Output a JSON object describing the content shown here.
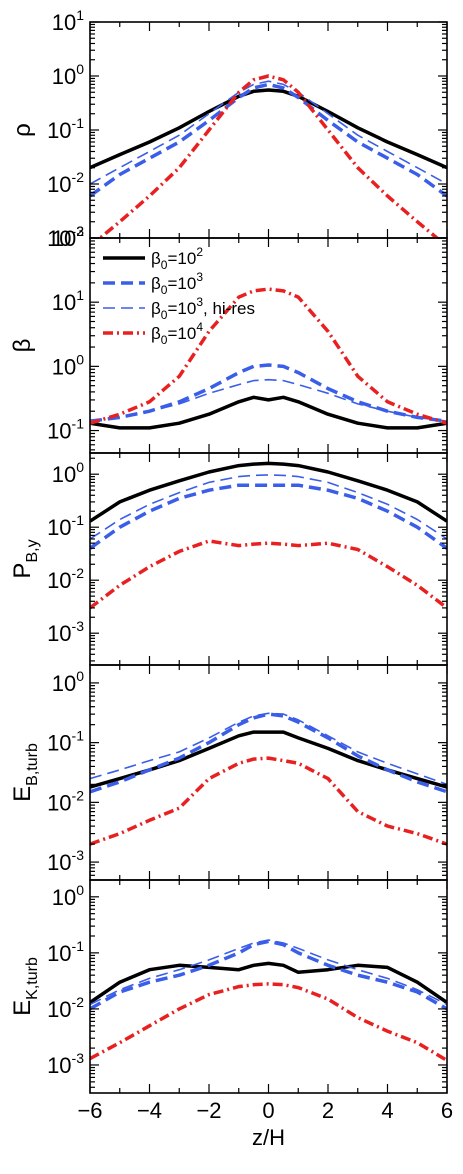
{
  "chart_data": {
    "type": "line",
    "xlabel": "z/H",
    "xlim": [
      -6,
      6
    ],
    "xticks": [
      -6,
      -4,
      -2,
      0,
      2,
      4,
      6
    ],
    "x": [
      -6,
      -5,
      -4,
      -3,
      -2,
      -1,
      -0.5,
      0,
      0.5,
      1,
      2,
      3,
      4,
      5,
      6
    ],
    "legend": {
      "placement": "top-left of second panel",
      "entries": [
        {
          "series_id": "b2",
          "base": "β",
          "sub": "0",
          "eq": "=10",
          "exp": "2",
          "suffix": ""
        },
        {
          "series_id": "b3",
          "base": "β",
          "sub": "0",
          "eq": "=10",
          "exp": "3",
          "suffix": ""
        },
        {
          "series_id": "b3hr",
          "base": "β",
          "sub": "0",
          "eq": "=10",
          "exp": "3",
          "suffix": ", hi-res"
        },
        {
          "series_id": "b4",
          "base": "β",
          "sub": "0",
          "eq": "=10",
          "exp": "4",
          "suffix": ""
        }
      ]
    },
    "styles": {
      "b2": {
        "color": "#000000",
        "dash": "none",
        "width": 3.5
      },
      "b3": {
        "color": "#3b5ee8",
        "dash": "12,6",
        "width": 3.5
      },
      "b3hr": {
        "color": "#3b5ee8",
        "dash": "12,6",
        "width": 1.6
      },
      "b4": {
        "color": "#e82020",
        "dash": "10,4,2,4",
        "width": 3.5
      }
    },
    "panels": [
      {
        "ylabel": "ρ",
        "ylabel_sub": "",
        "yscale": "log",
        "ylim_exp": [
          -3,
          1
        ],
        "yticks": [
          {
            "base": "10",
            "exp": "1"
          },
          {
            "base": "10",
            "exp": "0"
          },
          {
            "base": "10",
            "exp": "-1"
          },
          {
            "base": "10",
            "exp": "-2"
          },
          {
            "base": "10",
            "exp": "-3"
          }
        ],
        "series": [
          {
            "id": "b2",
            "y": [
              0.02,
              0.035,
              0.06,
              0.11,
              0.22,
              0.42,
              0.52,
              0.55,
              0.52,
              0.42,
              0.22,
              0.11,
              0.06,
              0.035,
              0.02
            ]
          },
          {
            "id": "b3",
            "y": [
              0.006,
              0.015,
              0.03,
              0.06,
              0.15,
              0.4,
              0.6,
              0.7,
              0.6,
              0.4,
              0.15,
              0.06,
              0.03,
              0.015,
              0.006
            ]
          },
          {
            "id": "b3hr",
            "y": [
              0.01,
              0.02,
              0.04,
              0.08,
              0.2,
              0.5,
              0.7,
              0.8,
              0.7,
              0.5,
              0.2,
              0.08,
              0.04,
              0.02,
              0.01
            ]
          },
          {
            "id": "b4",
            "y": [
              0.0007,
              0.002,
              0.006,
              0.02,
              0.1,
              0.5,
              0.85,
              1.0,
              0.85,
              0.5,
              0.1,
              0.02,
              0.006,
              0.002,
              0.0007
            ]
          }
        ]
      },
      {
        "ylabel": "β",
        "ylabel_sub": "",
        "yscale": "log",
        "ylim_exp": [
          -1.35,
          2
        ],
        "yticks": [
          {
            "base": "10",
            "exp": "2"
          },
          {
            "base": "10",
            "exp": "1"
          },
          {
            "base": "10",
            "exp": "0"
          },
          {
            "base": "10",
            "exp": "-1"
          }
        ],
        "series": [
          {
            "id": "b2",
            "y": [
              0.13,
              0.11,
              0.11,
              0.13,
              0.18,
              0.28,
              0.33,
              0.3,
              0.33,
              0.28,
              0.18,
              0.13,
              0.11,
              0.11,
              0.13
            ]
          },
          {
            "id": "b3",
            "y": [
              0.14,
              0.16,
              0.2,
              0.28,
              0.45,
              0.8,
              1.0,
              1.05,
              1.0,
              0.8,
              0.45,
              0.28,
              0.2,
              0.16,
              0.14
            ]
          },
          {
            "id": "b3hr",
            "y": [
              0.14,
              0.16,
              0.2,
              0.26,
              0.38,
              0.52,
              0.6,
              0.62,
              0.6,
              0.52,
              0.38,
              0.26,
              0.2,
              0.16,
              0.14
            ]
          },
          {
            "id": "b4",
            "y": [
              0.13,
              0.18,
              0.28,
              0.7,
              3.5,
              12.0,
              15.0,
              16.0,
              15.0,
              12.0,
              3.5,
              0.7,
              0.28,
              0.18,
              0.13
            ]
          }
        ]
      },
      {
        "ylabel": "P",
        "ylabel_sub": "B,y",
        "yscale": "log",
        "ylim_exp": [
          -3.6,
          0.4
        ],
        "yticks": [
          {
            "base": "10",
            "exp": "0"
          },
          {
            "base": "10",
            "exp": "-1"
          },
          {
            "base": "10",
            "exp": "-2"
          },
          {
            "base": "10",
            "exp": "-3"
          }
        ],
        "series": [
          {
            "id": "b2",
            "y": [
              0.13,
              0.3,
              0.5,
              0.75,
              1.1,
              1.45,
              1.55,
              1.6,
              1.55,
              1.45,
              1.1,
              0.75,
              0.5,
              0.3,
              0.13
            ]
          },
          {
            "id": "b3",
            "y": [
              0.04,
              0.1,
              0.2,
              0.35,
              0.5,
              0.62,
              0.62,
              0.62,
              0.62,
              0.62,
              0.5,
              0.35,
              0.2,
              0.1,
              0.04
            ]
          },
          {
            "id": "b3hr",
            "y": [
              0.06,
              0.14,
              0.27,
              0.45,
              0.7,
              0.9,
              0.95,
              0.97,
              0.95,
              0.9,
              0.7,
              0.45,
              0.27,
              0.14,
              0.06
            ]
          },
          {
            "id": "b4",
            "y": [
              0.003,
              0.008,
              0.018,
              0.035,
              0.055,
              0.045,
              0.048,
              0.05,
              0.048,
              0.045,
              0.05,
              0.038,
              0.018,
              0.008,
              0.003
            ]
          }
        ]
      },
      {
        "ylabel": "E",
        "ylabel_sub": "B,turb",
        "yscale": "log",
        "ylim_exp": [
          -3.3,
          0.3
        ],
        "yticks": [
          {
            "base": "10",
            "exp": "0"
          },
          {
            "base": "10",
            "exp": "-1"
          },
          {
            "base": "10",
            "exp": "-2"
          },
          {
            "base": "10",
            "exp": "-3"
          }
        ],
        "series": [
          {
            "id": "b2",
            "y": [
              0.018,
              0.025,
              0.035,
              0.05,
              0.08,
              0.13,
              0.15,
              0.15,
              0.15,
              0.12,
              0.08,
              0.05,
              0.035,
              0.025,
              0.018
            ]
          },
          {
            "id": "b3",
            "y": [
              0.015,
              0.022,
              0.035,
              0.055,
              0.1,
              0.2,
              0.26,
              0.3,
              0.28,
              0.22,
              0.12,
              0.06,
              0.035,
              0.022,
              0.015
            ]
          },
          {
            "id": "b3hr",
            "y": [
              0.025,
              0.035,
              0.05,
              0.07,
              0.12,
              0.22,
              0.28,
              0.31,
              0.3,
              0.24,
              0.13,
              0.07,
              0.045,
              0.03,
              0.02
            ]
          },
          {
            "id": "b4",
            "y": [
              0.002,
              0.003,
              0.005,
              0.008,
              0.025,
              0.045,
              0.053,
              0.055,
              0.05,
              0.045,
              0.025,
              0.007,
              0.004,
              0.003,
              0.002
            ]
          }
        ]
      },
      {
        "ylabel": "E",
        "ylabel_sub": "K,turb",
        "yscale": "log",
        "ylim_exp": [
          -3.5,
          0.3
        ],
        "yticks": [
          {
            "base": "10",
            "exp": "0"
          },
          {
            "base": "10",
            "exp": "-1"
          },
          {
            "base": "10",
            "exp": "-2"
          },
          {
            "base": "10",
            "exp": "-3"
          }
        ],
        "series": [
          {
            "id": "b2",
            "y": [
              0.013,
              0.03,
              0.05,
              0.06,
              0.055,
              0.05,
              0.06,
              0.065,
              0.06,
              0.045,
              0.05,
              0.06,
              0.055,
              0.03,
              0.013
            ]
          },
          {
            "id": "b3",
            "y": [
              0.01,
              0.02,
              0.03,
              0.04,
              0.06,
              0.1,
              0.14,
              0.16,
              0.14,
              0.1,
              0.06,
              0.04,
              0.03,
              0.02,
              0.01
            ]
          },
          {
            "id": "b3hr",
            "y": [
              0.012,
              0.022,
              0.035,
              0.05,
              0.075,
              0.12,
              0.15,
              0.17,
              0.15,
              0.12,
              0.075,
              0.05,
              0.035,
              0.022,
              0.012
            ]
          },
          {
            "id": "b4",
            "y": [
              0.0013,
              0.0025,
              0.005,
              0.01,
              0.018,
              0.025,
              0.027,
              0.028,
              0.027,
              0.024,
              0.015,
              0.007,
              0.004,
              0.0025,
              0.0012
            ]
          }
        ]
      }
    ]
  }
}
